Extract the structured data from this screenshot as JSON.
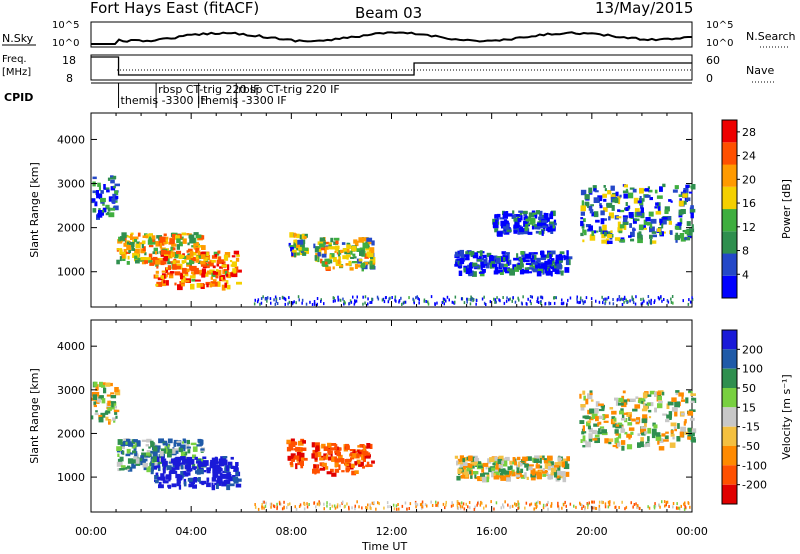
{
  "header": {
    "title": "Fort Hays East (fitACF)",
    "beam": "Beam 03",
    "date": "13/May/2015"
  },
  "summary": {
    "nsky_label": "N.Sky",
    "nsky_ticks": [
      "10^5",
      "10^0"
    ],
    "nsearch_label": "N.Search",
    "freq_label": "Freq.",
    "freq_unit": "[MHz]",
    "freq_ticks": [
      "18",
      "8"
    ],
    "nave_label": "Nave",
    "nave_ticks": [
      "60",
      "0"
    ],
    "cpid_label": "CPID",
    "cpid_entries": [
      {
        "text": "themis -3300 IF",
        "row": 2,
        "start_hour": 1.1
      },
      {
        "text": "rbsp CT-trig 220 IF",
        "row": 1,
        "start_hour": 2.6
      },
      {
        "text": "themis -3300 IF",
        "row": 2,
        "start_hour": 4.3
      },
      {
        "text": "rbsp CT-trig 220 IF",
        "row": 1,
        "start_hour": 5.8
      }
    ]
  },
  "chart_data": [
    {
      "type": "heatmap",
      "name": "power",
      "ylabel": "Slant Range [km]",
      "yticks": [
        1000,
        2000,
        3000,
        4000
      ],
      "ylim": [
        200,
        4600
      ],
      "xlim": [
        0,
        24
      ],
      "colorbar": {
        "label": "Power [dB]",
        "ticks": [
          4,
          8,
          12,
          16,
          20,
          24,
          28
        ],
        "range": [
          0,
          30
        ],
        "colors": [
          "#0000ff",
          "#2448c8",
          "#2f8f4f",
          "#3fae3f",
          "#f4d000",
          "#ff9a00",
          "#ff5000",
          "#ee0000"
        ]
      },
      "echo_regions": [
        {
          "t0": 0.0,
          "t1": 1.0,
          "r0": 2300,
          "r1": 3200,
          "level": 0.2
        },
        {
          "t0": 1.0,
          "t1": 4.4,
          "r0": 1200,
          "r1": 1900,
          "level": 0.55
        },
        {
          "t0": 2.5,
          "t1": 5.8,
          "r0": 700,
          "r1": 1500,
          "level": 0.75
        },
        {
          "t0": 7.8,
          "t1": 8.5,
          "r0": 1400,
          "r1": 1900,
          "level": 0.4
        },
        {
          "t0": 8.8,
          "t1": 11.2,
          "r0": 1100,
          "r1": 1800,
          "level": 0.5
        },
        {
          "t0": 14.5,
          "t1": 19.0,
          "r0": 1000,
          "r1": 1500,
          "level": 0.1
        },
        {
          "t0": 16.0,
          "t1": 18.5,
          "r0": 1900,
          "r1": 2400,
          "level": 0.1
        },
        {
          "t0": 19.5,
          "t1": 24.0,
          "r0": 1700,
          "r1": 3000,
          "level": 0.3
        }
      ]
    },
    {
      "type": "heatmap",
      "name": "velocity",
      "ylabel": "Slant Range [km]",
      "yticks": [
        1000,
        2000,
        3000,
        4000
      ],
      "ylim": [
        200,
        4600
      ],
      "xlim": [
        0,
        24
      ],
      "xlabel": "Time UT",
      "xticks": [
        "00:00",
        "04:00",
        "08:00",
        "12:00",
        "16:00",
        "20:00",
        "00:00"
      ],
      "colorbar": {
        "label": "Velocity [m s⁻¹]",
        "ticks": [
          200,
          100,
          50,
          15,
          -15,
          -50,
          -100,
          -200
        ],
        "colors": [
          "#1a1ad8",
          "#1f5aa8",
          "#2f8f4f",
          "#78d040",
          "#c8c8c8",
          "#f4c040",
          "#ff8a00",
          "#ff5000",
          "#e00000"
        ]
      },
      "echo_regions": [
        {
          "t0": 0.0,
          "t1": 1.0,
          "r0": 2300,
          "r1": 3200,
          "vel": 0
        },
        {
          "t0": 1.0,
          "t1": 4.4,
          "r0": 1200,
          "r1": 1900,
          "vel": 60
        },
        {
          "t0": 2.5,
          "t1": 5.8,
          "r0": 800,
          "r1": 1500,
          "vel": 200
        },
        {
          "t0": 7.8,
          "t1": 8.5,
          "r0": 1300,
          "r1": 1900,
          "vel": -120
        },
        {
          "t0": 8.8,
          "t1": 11.2,
          "r0": 1100,
          "r1": 1800,
          "vel": -120
        },
        {
          "t0": 14.5,
          "t1": 19.0,
          "r0": 1000,
          "r1": 1500,
          "vel": 0
        },
        {
          "t0": 19.5,
          "t1": 24.0,
          "r0": 1700,
          "r1": 3000,
          "vel": 0
        }
      ]
    }
  ]
}
